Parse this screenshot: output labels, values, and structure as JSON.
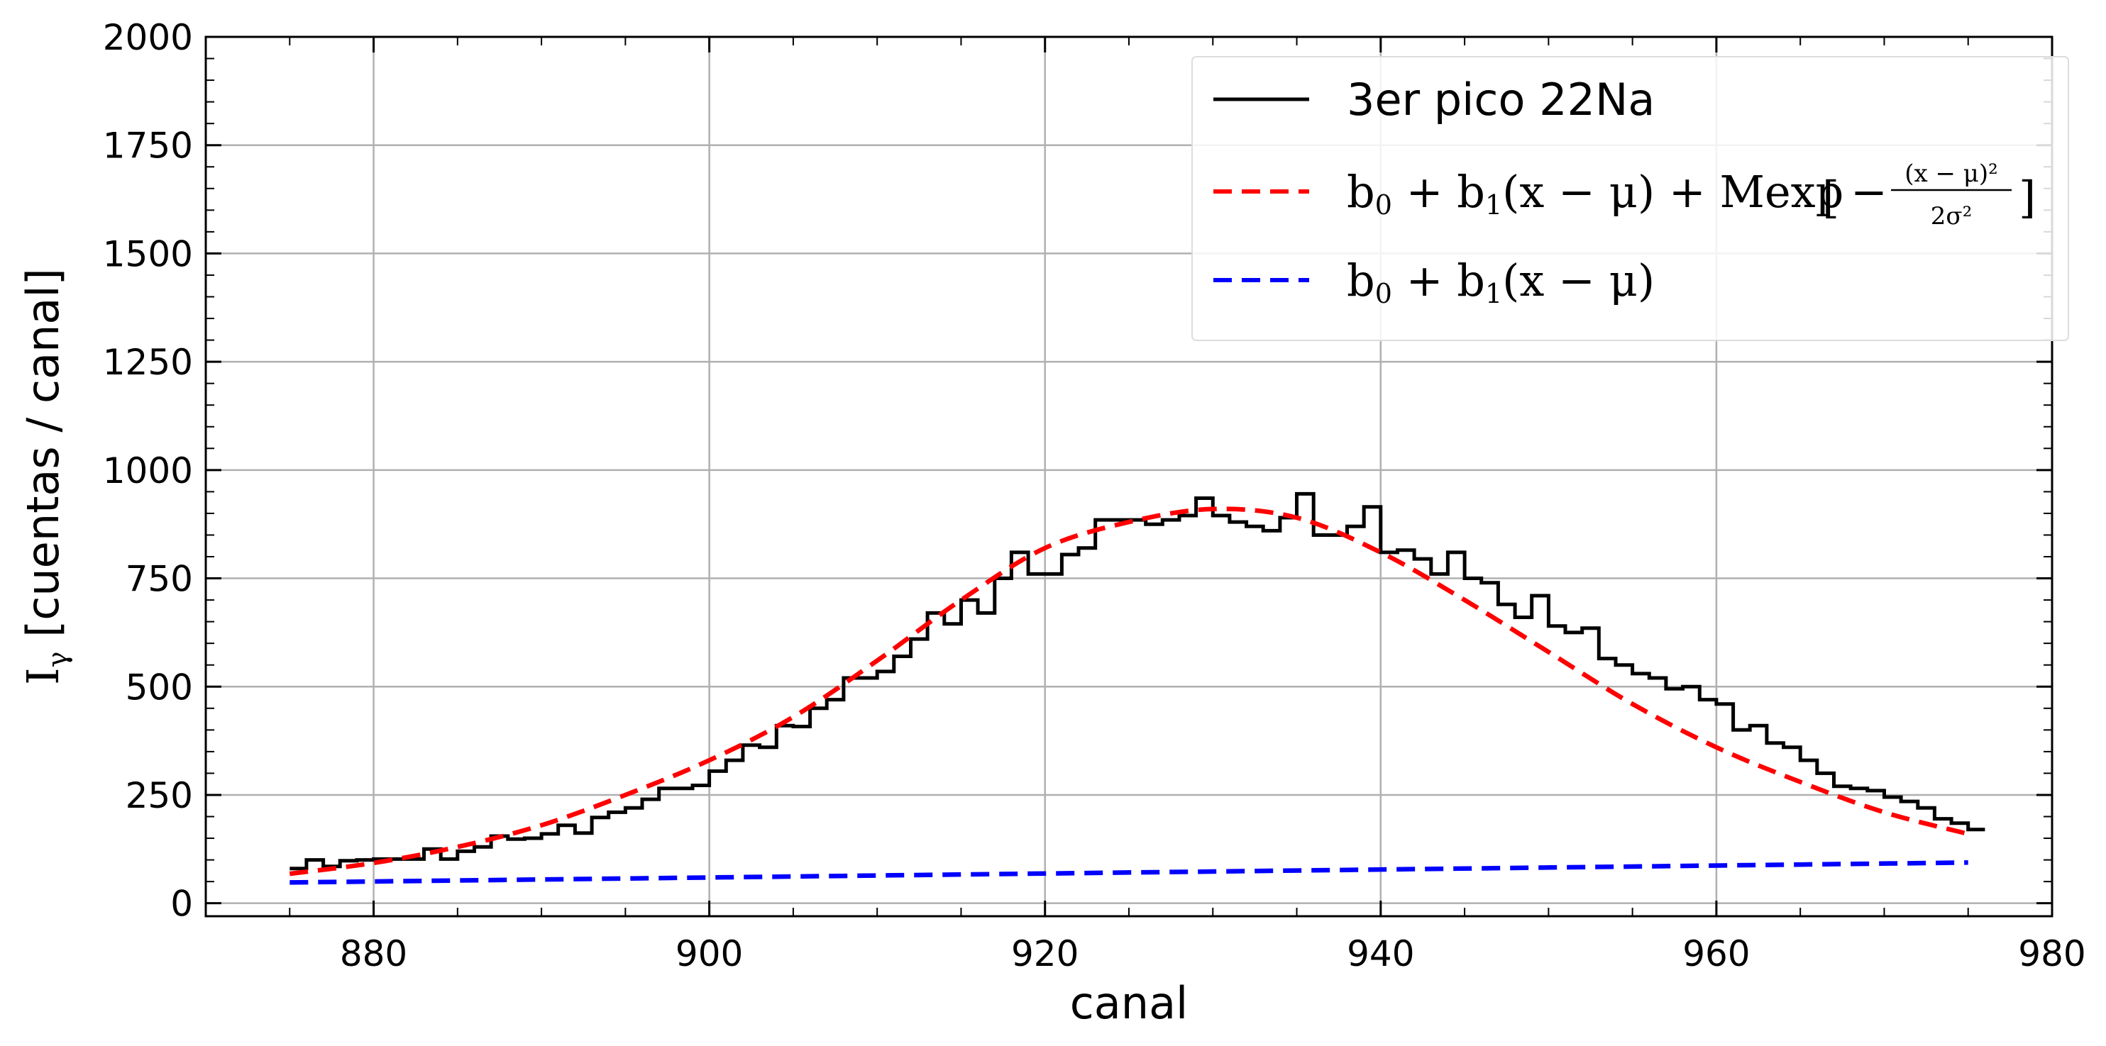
{
  "chart_data": {
    "type": "line",
    "xlabel": "canal",
    "ylabel": "Iγ [cuentas / canal]",
    "ylabel_main": "I",
    "ylabel_sub": "γ",
    "ylabel_rest": " [cuentas / canal]",
    "xlim": [
      870,
      980
    ],
    "ylim": [
      -30,
      2000
    ],
    "xticks": [
      880,
      900,
      920,
      940,
      960,
      980
    ],
    "yticks": [
      0,
      250,
      500,
      750,
      1000,
      1250,
      1500,
      1750,
      2000
    ],
    "grid": true,
    "legend_position": "top-right",
    "legend_entries": [
      {
        "label": "3er pico 22Na",
        "color": "#000000",
        "style": "solid"
      },
      {
        "label": "b0 + b1(x − μ) + Mexp[−(x − μ)²/2σ²]",
        "color": "#ff0000",
        "style": "dashed"
      },
      {
        "label": "b0 + b1(x − μ)",
        "color": "#0000ff",
        "style": "dashed"
      }
    ],
    "series": [
      {
        "name": "3er pico 22Na",
        "kind": "step",
        "color": "#000000",
        "x_start": 875,
        "x_step": 1,
        "values": [
          80,
          100,
          85,
          98,
          100,
          102,
          102,
          102,
          125,
          102,
          120,
          130,
          155,
          148,
          150,
          160,
          180,
          162,
          198,
          210,
          220,
          240,
          265,
          265,
          272,
          305,
          330,
          365,
          360,
          410,
          408,
          450,
          470,
          520,
          520,
          535,
          570,
          610,
          670,
          645,
          700,
          670,
          750,
          810,
          760,
          760,
          805,
          820,
          885,
          885,
          885,
          875,
          885,
          895,
          935,
          895,
          880,
          870,
          860,
          890,
          945,
          850,
          850,
          870,
          915,
          810,
          815,
          795,
          760,
          810,
          750,
          740,
          690,
          660,
          710,
          640,
          625,
          635,
          565,
          550,
          530,
          520,
          495,
          500,
          470,
          460,
          400,
          410,
          370,
          360,
          330,
          300,
          270,
          265,
          260,
          245,
          235,
          220,
          195,
          185,
          170
        ]
      },
      {
        "name": "b0 + b1(x − μ) + Mexp[−(x − μ)²/2σ²]",
        "kind": "curve",
        "color": "#ff0000",
        "x": [
          875,
          880,
          885,
          890,
          895,
          900,
          905,
          910,
          915,
          920,
          925,
          930,
          935,
          940,
          945,
          950,
          955,
          960,
          965,
          970,
          975
        ],
        "values": [
          68,
          93,
          130,
          180,
          250,
          330,
          430,
          560,
          700,
          820,
          880,
          910,
          890,
          810,
          700,
          580,
          460,
          360,
          280,
          210,
          160
        ]
      },
      {
        "name": "b0 + b1(x − μ)",
        "kind": "line",
        "color": "#0000ff",
        "x": [
          875,
          975
        ],
        "values": [
          48,
          94
        ]
      }
    ]
  }
}
